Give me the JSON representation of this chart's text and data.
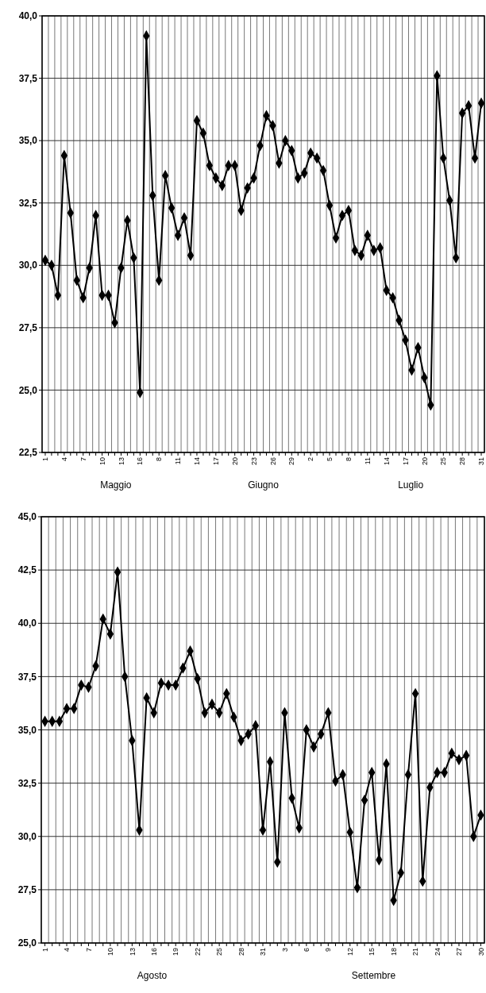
{
  "chart_data": [
    {
      "type": "line",
      "categories": [
        "1",
        null,
        null,
        "4",
        null,
        null,
        "7",
        null,
        null,
        "10",
        null,
        null,
        "13",
        null,
        null,
        "16",
        null,
        null,
        "8",
        null,
        null,
        "11",
        null,
        null,
        "14",
        null,
        null,
        "17",
        null,
        null,
        "20",
        null,
        null,
        "23",
        null,
        null,
        "26",
        null,
        null,
        "29",
        null,
        null,
        "2",
        null,
        null,
        "5",
        null,
        null,
        "8",
        null,
        null,
        "11",
        null,
        null,
        "14",
        null,
        null,
        "17",
        null,
        null,
        "20",
        null,
        null,
        "25",
        null,
        null,
        "28",
        null,
        null,
        "31"
      ],
      "series": [
        {
          "color": "#000000",
          "values": [
            30.2,
            30.0,
            28.8,
            34.4,
            32.1,
            29.4,
            28.7,
            29.9,
            32.0,
            28.8,
            28.8,
            27.7,
            29.9,
            31.8,
            30.3,
            24.9,
            39.2,
            32.8,
            29.4,
            33.6,
            32.3,
            31.2,
            31.9,
            30.4,
            35.8,
            35.3,
            34.0,
            33.5,
            33.2,
            34.0,
            34.0,
            32.2,
            33.1,
            33.5,
            34.8,
            36.0,
            35.6,
            34.1,
            35.0,
            34.6,
            33.5,
            33.7,
            34.5,
            34.3,
            33.8,
            32.4,
            31.1,
            32.0,
            32.2,
            30.6,
            30.4,
            31.2,
            30.6,
            30.7,
            29.0,
            28.7,
            27.8,
            27.0,
            25.8,
            26.7,
            25.5,
            24.4,
            37.6,
            34.3,
            32.6,
            30.3,
            36.1,
            36.4,
            34.3,
            36.5
          ]
        }
      ],
      "ylim": [
        22.5,
        40
      ],
      "yticks": [
        {
          "value": 22.5,
          "label": "22,5"
        },
        {
          "value": 25,
          "label": "25,0"
        },
        {
          "value": 27.5,
          "label": "27,5"
        },
        {
          "value": 30,
          "label": "30,0"
        },
        {
          "value": 32.5,
          "label": "32,5"
        },
        {
          "value": 35,
          "label": "35,0"
        },
        {
          "value": 37.5,
          "label": "37,5"
        },
        {
          "value": 40,
          "label": "40,0"
        }
      ],
      "grid": true,
      "marker": "diamond",
      "annotations": [
        "Maggio",
        "Giugno",
        "Luglio"
      ]
    },
    {
      "type": "line",
      "categories": [
        "1",
        null,
        null,
        "4",
        null,
        null,
        "7",
        null,
        null,
        "10",
        null,
        null,
        "13",
        null,
        null,
        "16",
        null,
        null,
        "19",
        null,
        null,
        "22",
        null,
        null,
        "25",
        null,
        null,
        "28",
        null,
        null,
        "31",
        null,
        null,
        "3",
        null,
        null,
        "6",
        null,
        null,
        "9",
        null,
        null,
        "12",
        null,
        null,
        "15",
        null,
        null,
        "18",
        null,
        null,
        "21",
        null,
        null,
        "24",
        null,
        null,
        "27",
        null,
        null,
        "30"
      ],
      "series": [
        {
          "color": "#000000",
          "values": [
            35.4,
            35.4,
            35.4,
            36.0,
            36.0,
            37.1,
            37.0,
            38.0,
            40.2,
            39.5,
            42.4,
            37.5,
            34.5,
            30.3,
            36.5,
            35.8,
            37.2,
            37.1,
            37.1,
            37.9,
            38.7,
            37.4,
            35.8,
            36.2,
            35.8,
            36.7,
            35.6,
            34.5,
            34.8,
            35.2,
            30.3,
            33.5,
            28.8,
            35.8,
            31.8,
            30.4,
            35.0,
            34.2,
            34.8,
            35.8,
            32.6,
            32.9,
            30.2,
            27.6,
            31.7,
            33.0,
            28.9,
            33.4,
            27.0,
            28.3,
            32.9,
            36.7,
            27.9,
            32.3,
            33.0,
            33.0,
            33.9,
            33.6,
            33.8,
            30.0,
            31.0
          ]
        }
      ],
      "ylim": [
        25,
        45
      ],
      "yticks": [
        {
          "value": 25,
          "label": "25,0"
        },
        {
          "value": 27.5,
          "label": "27,5"
        },
        {
          "value": 30,
          "label": "30,0"
        },
        {
          "value": 32.5,
          "label": "32,5"
        },
        {
          "value": 35,
          "label": "35,0"
        },
        {
          "value": 37.5,
          "label": "37,5"
        },
        {
          "value": 40,
          "label": "40,0"
        },
        {
          "value": 42.5,
          "label": "42,5"
        },
        {
          "value": 45,
          "label": "45,0"
        }
      ],
      "grid": true,
      "marker": "diamond",
      "annotations": [
        "Agosto",
        "Settembre"
      ]
    }
  ]
}
